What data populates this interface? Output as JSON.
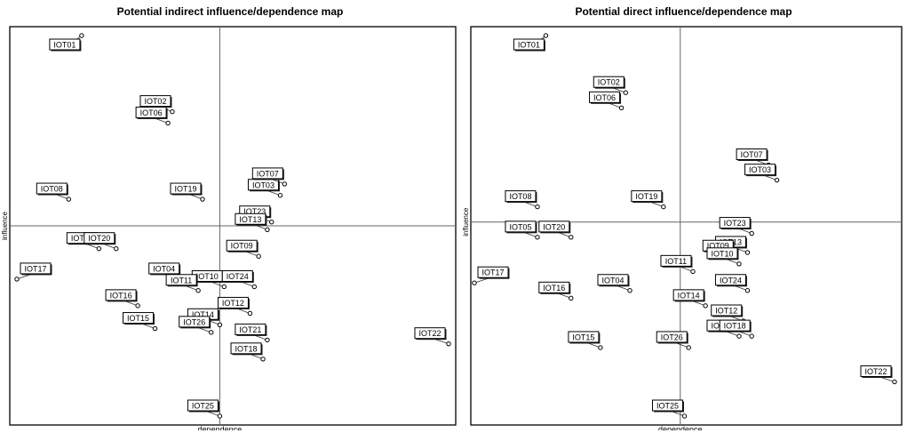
{
  "chart_data": [
    {
      "type": "scatter",
      "title": "Potential indirect influence/dependence map",
      "xlabel": "dependence",
      "ylabel": "influence",
      "xlim": [
        0,
        100
      ],
      "ylim": [
        0,
        100
      ],
      "grid": false,
      "quadrant_lines": {
        "x": 47,
        "y": 50
      },
      "points": [
        {
          "label": "IOT01",
          "x": 15,
          "y": 100
        },
        {
          "label": "IOT02",
          "x": 36,
          "y": 80
        },
        {
          "label": "IOT06",
          "x": 35,
          "y": 77
        },
        {
          "label": "IOT08",
          "x": 12,
          "y": 57
        },
        {
          "label": "IOT19",
          "x": 43,
          "y": 57
        },
        {
          "label": "IOT03",
          "x": 61,
          "y": 58
        },
        {
          "label": "IOT07",
          "x": 62,
          "y": 61
        },
        {
          "label": "IOT23",
          "x": 59,
          "y": 51
        },
        {
          "label": "IOT13",
          "x": 58,
          "y": 49
        },
        {
          "label": "IOT09",
          "x": 56,
          "y": 42
        },
        {
          "label": "IOT05",
          "x": 19,
          "y": 44
        },
        {
          "label": "IOT17",
          "x": 0,
          "y": 36
        },
        {
          "label": "IOT20",
          "x": 23,
          "y": 44
        },
        {
          "label": "IOT04",
          "x": 38,
          "y": 36
        },
        {
          "label": "IOT10",
          "x": 48,
          "y": 34
        },
        {
          "label": "IOT24",
          "x": 55,
          "y": 34
        },
        {
          "label": "IOT11",
          "x": 42,
          "y": 33
        },
        {
          "label": "IOT16",
          "x": 28,
          "y": 29
        },
        {
          "label": "IOT12",
          "x": 54,
          "y": 27
        },
        {
          "label": "IOT14",
          "x": 47,
          "y": 24
        },
        {
          "label": "IOT15",
          "x": 32,
          "y": 23
        },
        {
          "label": "IOT26",
          "x": 45,
          "y": 22
        },
        {
          "label": "IOT21",
          "x": 58,
          "y": 20
        },
        {
          "label": "IOT22",
          "x": 100,
          "y": 19
        },
        {
          "label": "IOT18",
          "x": 57,
          "y": 15
        },
        {
          "label": "IOT25",
          "x": 47,
          "y": 0
        }
      ]
    },
    {
      "type": "scatter",
      "title": "Potential direct influence/dependence map",
      "xlabel": "dependence",
      "ylabel": "influence",
      "xlim": [
        0,
        100
      ],
      "ylim": [
        0,
        100
      ],
      "grid": false,
      "quadrant_lines": {
        "x": 49,
        "y": 51
      },
      "points": [
        {
          "label": "IOT01",
          "x": 17,
          "y": 100
        },
        {
          "label": "IOT02",
          "x": 36,
          "y": 85
        },
        {
          "label": "IOT06",
          "x": 35,
          "y": 81
        },
        {
          "label": "IOT07",
          "x": 70,
          "y": 66
        },
        {
          "label": "IOT03",
          "x": 72,
          "y": 62
        },
        {
          "label": "IOT08",
          "x": 15,
          "y": 55
        },
        {
          "label": "IOT19",
          "x": 45,
          "y": 55
        },
        {
          "label": "IOT05",
          "x": 15,
          "y": 47
        },
        {
          "label": "IOT20",
          "x": 23,
          "y": 47
        },
        {
          "label": "IOT23",
          "x": 66,
          "y": 48
        },
        {
          "label": "IOT13",
          "x": 65,
          "y": 43
        },
        {
          "label": "IOT09",
          "x": 62,
          "y": 42
        },
        {
          "label": "IOT10",
          "x": 63,
          "y": 40
        },
        {
          "label": "IOT17",
          "x": 0,
          "y": 35
        },
        {
          "label": "IOT11",
          "x": 52,
          "y": 38
        },
        {
          "label": "IOT16",
          "x": 23,
          "y": 31
        },
        {
          "label": "IOT04",
          "x": 37,
          "y": 33
        },
        {
          "label": "IOT14",
          "x": 55,
          "y": 29
        },
        {
          "label": "IOT24",
          "x": 65,
          "y": 33
        },
        {
          "label": "IOT12",
          "x": 64,
          "y": 25
        },
        {
          "label": "IOT15",
          "x": 30,
          "y": 18
        },
        {
          "label": "IOT26",
          "x": 51,
          "y": 18
        },
        {
          "label": "IOT21",
          "x": 63,
          "y": 21
        },
        {
          "label": "IOT18",
          "x": 66,
          "y": 21
        },
        {
          "label": "IOT22",
          "x": 100,
          "y": 9
        },
        {
          "label": "IOT25",
          "x": 50,
          "y": 0
        }
      ]
    }
  ]
}
